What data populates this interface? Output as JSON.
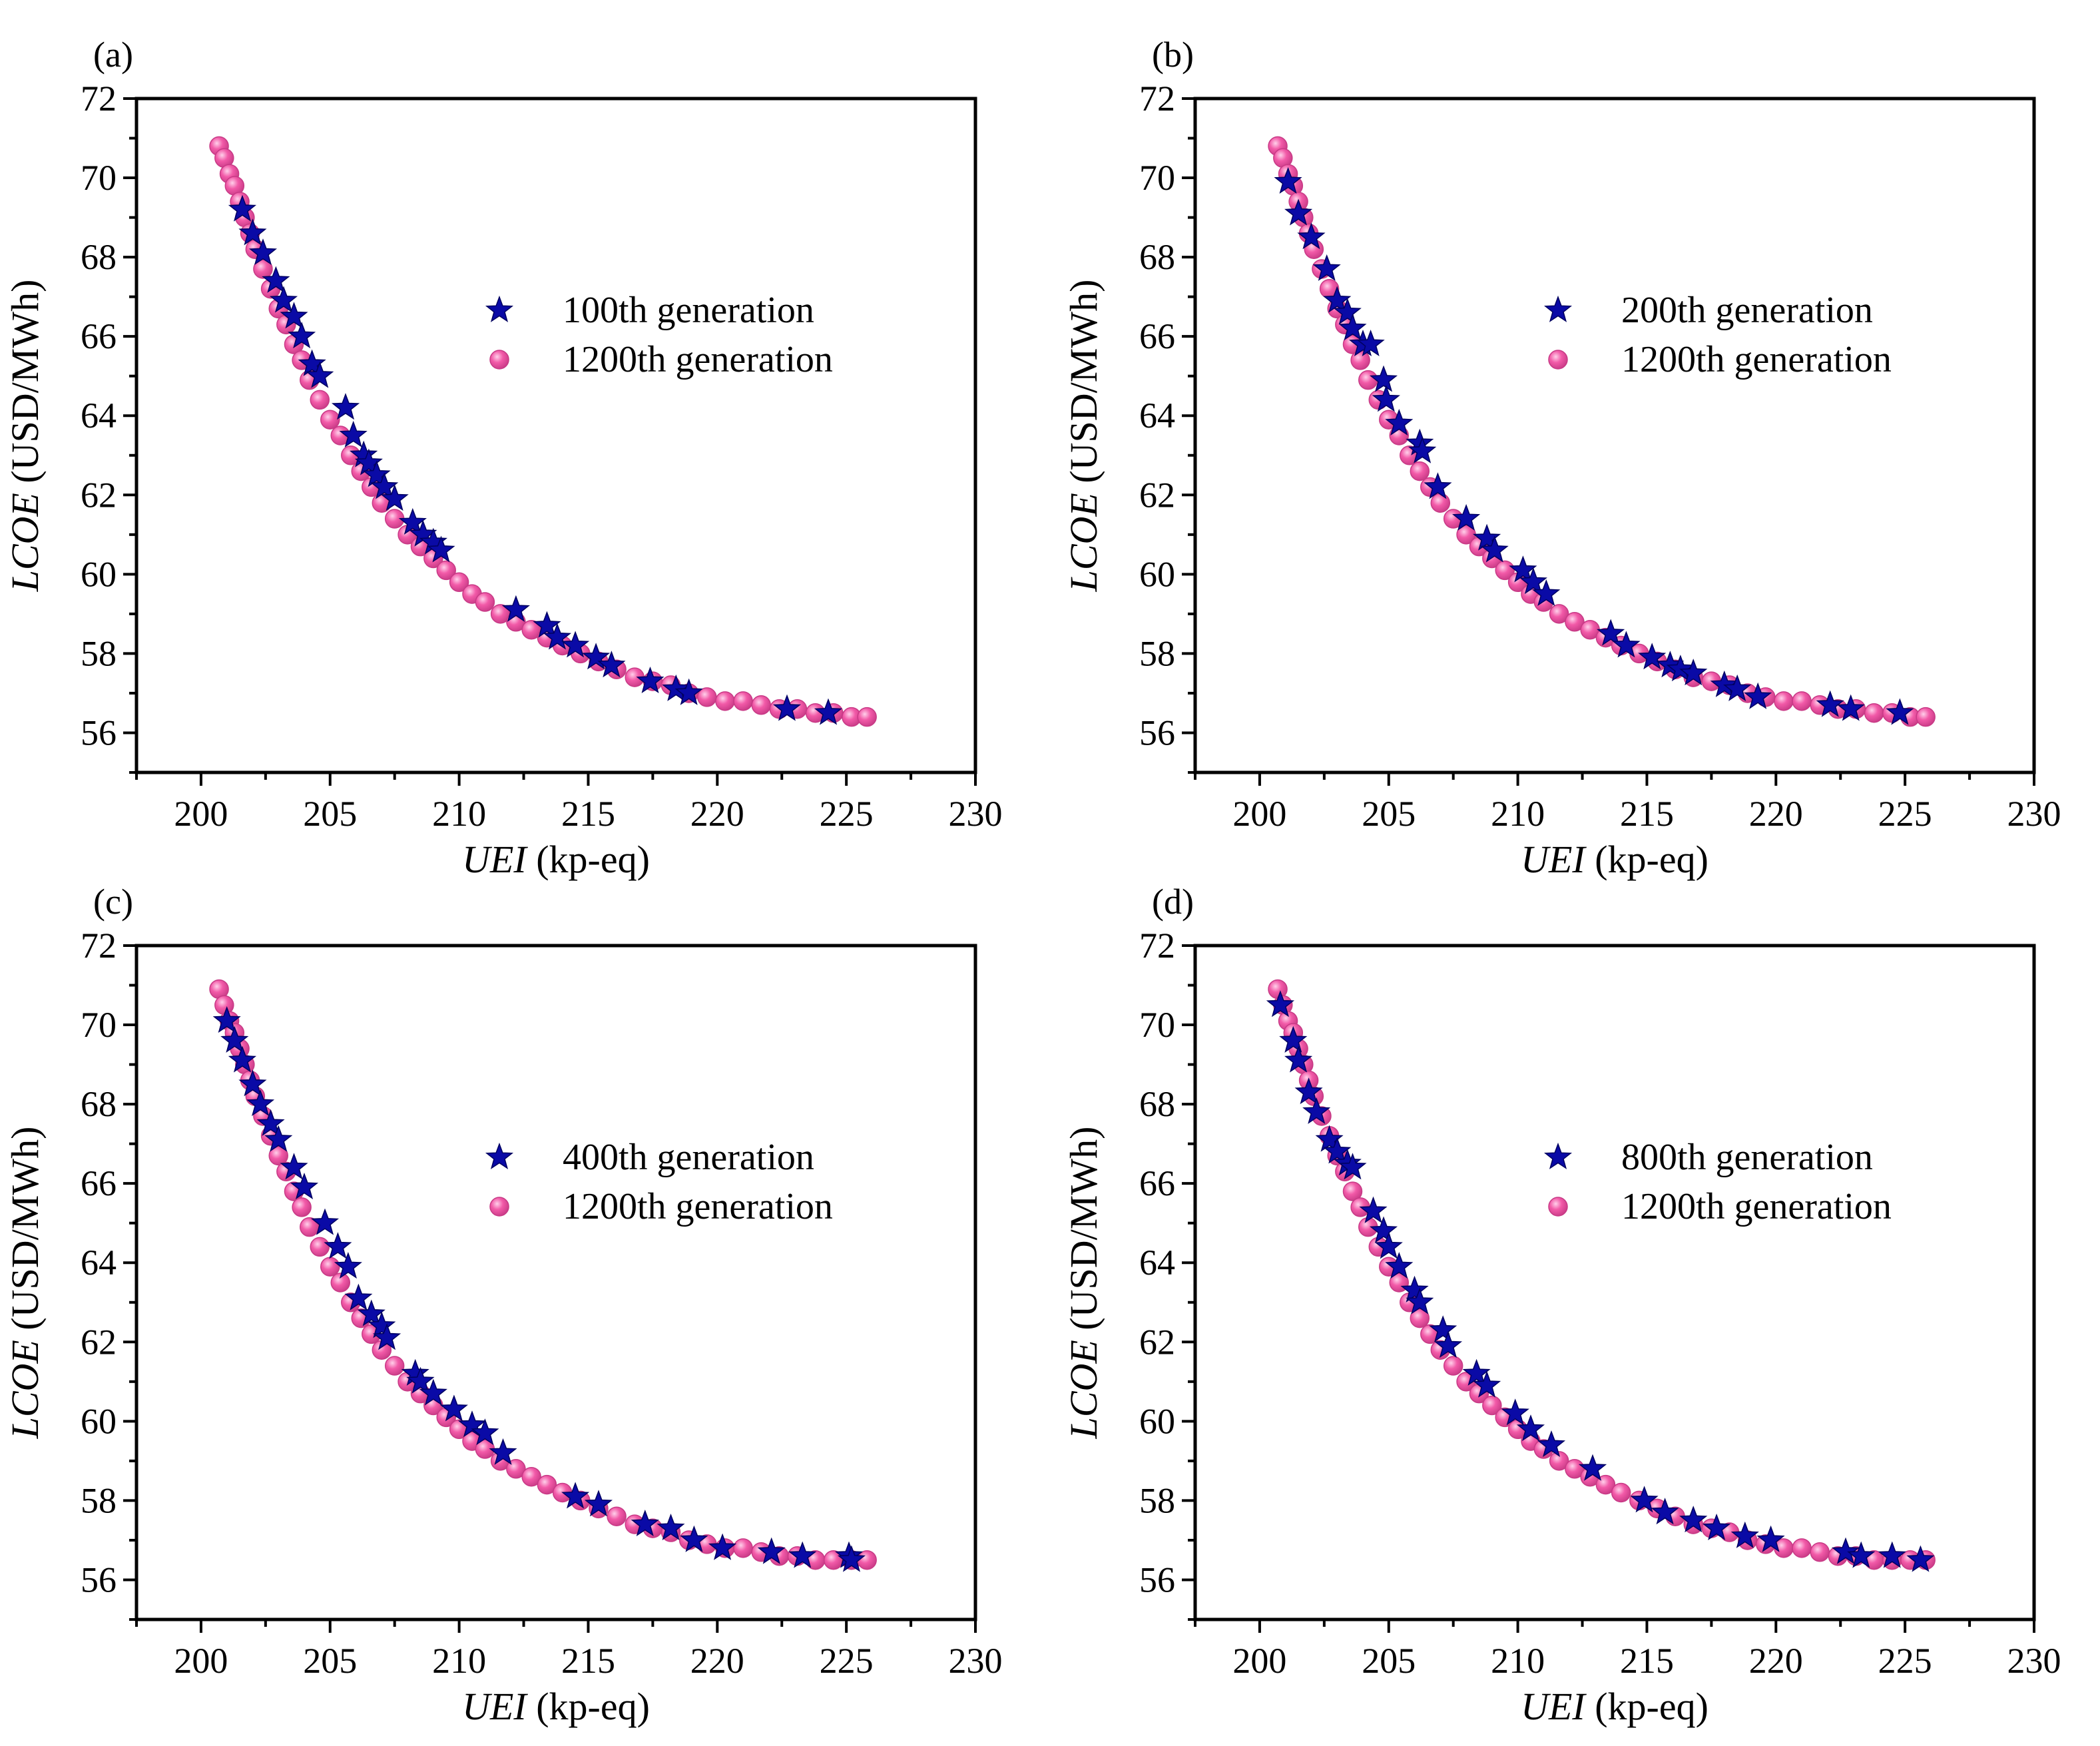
{
  "colors": {
    "star": "#0a0aa6",
    "star_stroke": "#000060",
    "circle": "#f25aa8",
    "circle_stroke": "#c83a86",
    "circle_highlight": "#ffd0ea"
  },
  "chart_data": [
    {
      "type": "scatter",
      "panel_label": "(a)",
      "xlabel_italic": "UEI",
      "xlabel_unit": " (kp-eq)",
      "ylabel_italic": "LCOE",
      "ylabel_unit": " (USD/MWh)",
      "xlim": [
        197.5,
        230
      ],
      "ylim": [
        55,
        72
      ],
      "xticks": [
        "200",
        "205",
        "210",
        "215",
        "220",
        "225",
        "230"
      ],
      "yticks": [
        "56",
        "58",
        "60",
        "62",
        "64",
        "66",
        "68",
        "70",
        "72"
      ],
      "series": [
        {
          "name": "100th generation",
          "marker": "star",
          "x": [
            201.6,
            202.0,
            202.4,
            202.9,
            203.2,
            203.6,
            203.9,
            204.3,
            204.6,
            205.6,
            205.9,
            206.3,
            206.5,
            206.8,
            207.1,
            207.5,
            208.2,
            208.6,
            209.0,
            209.3,
            212.2,
            213.4,
            213.8,
            214.5,
            215.3,
            215.9,
            217.4,
            218.4,
            218.9,
            222.7,
            224.3
          ],
          "y": [
            69.2,
            68.6,
            68.1,
            67.4,
            66.9,
            66.5,
            66.0,
            65.3,
            65.0,
            64.2,
            63.5,
            63.0,
            62.8,
            62.5,
            62.2,
            61.9,
            61.3,
            61.0,
            60.8,
            60.6,
            59.1,
            58.7,
            58.4,
            58.2,
            57.9,
            57.7,
            57.3,
            57.1,
            57.0,
            56.6,
            56.5
          ]
        },
        {
          "name": "1200th generation",
          "marker": "circle",
          "x": [
            200.7,
            200.9,
            201.1,
            201.3,
            201.5,
            201.7,
            201.9,
            202.1,
            202.4,
            202.7,
            203.0,
            203.3,
            203.6,
            203.9,
            204.2,
            204.6,
            205.0,
            205.4,
            205.8,
            206.2,
            206.6,
            207.0,
            207.5,
            208.0,
            208.5,
            209.0,
            209.5,
            210.0,
            210.5,
            211.0,
            211.6,
            212.2,
            212.8,
            213.4,
            214.0,
            214.7,
            215.4,
            216.1,
            216.8,
            217.5,
            218.2,
            218.9,
            219.6,
            220.3,
            221.0,
            221.7,
            222.4,
            223.1,
            223.8,
            224.5,
            225.2,
            225.8
          ],
          "y": [
            70.8,
            70.5,
            70.1,
            69.8,
            69.4,
            69.0,
            68.6,
            68.2,
            67.7,
            67.2,
            66.7,
            66.3,
            65.8,
            65.4,
            64.9,
            64.4,
            63.9,
            63.5,
            63.0,
            62.6,
            62.2,
            61.8,
            61.4,
            61.0,
            60.7,
            60.4,
            60.1,
            59.8,
            59.5,
            59.3,
            59.0,
            58.8,
            58.6,
            58.4,
            58.2,
            58.0,
            57.8,
            57.6,
            57.4,
            57.3,
            57.2,
            57.0,
            56.9,
            56.8,
            56.8,
            56.7,
            56.6,
            56.6,
            56.5,
            56.5,
            56.4,
            56.4
          ]
        }
      ]
    },
    {
      "type": "scatter",
      "panel_label": "(b)",
      "xlabel_italic": "UEI",
      "xlabel_unit": " (kp-eq)",
      "ylabel_italic": "LCOE",
      "ylabel_unit": " (USD/MWh)",
      "xlim": [
        197.5,
        230
      ],
      "ylim": [
        55,
        72
      ],
      "xticks": [
        "200",
        "205",
        "210",
        "215",
        "220",
        "225",
        "230"
      ],
      "yticks": [
        "56",
        "58",
        "60",
        "62",
        "64",
        "66",
        "68",
        "70",
        "72"
      ],
      "series": [
        {
          "name": "200th generation",
          "marker": "star",
          "x": [
            201.1,
            201.5,
            202.0,
            202.6,
            203.0,
            203.4,
            203.6,
            204.0,
            204.3,
            204.8,
            204.9,
            205.4,
            206.2,
            206.3,
            206.9,
            208.0,
            208.8,
            209.1,
            210.2,
            210.6,
            211.1,
            213.6,
            214.2,
            215.2,
            215.9,
            216.3,
            216.8,
            218.0,
            218.5,
            219.3,
            222.1,
            222.9,
            224.8
          ],
          "y": [
            69.9,
            69.1,
            68.5,
            67.7,
            66.9,
            66.6,
            66.2,
            65.8,
            65.8,
            64.9,
            64.4,
            63.8,
            63.3,
            63.1,
            62.2,
            61.4,
            60.9,
            60.6,
            60.1,
            59.8,
            59.5,
            58.5,
            58.2,
            57.9,
            57.7,
            57.6,
            57.5,
            57.2,
            57.1,
            56.9,
            56.7,
            56.6,
            56.5
          ]
        },
        {
          "name": "1200th generation",
          "marker": "circle",
          "x": [
            200.7,
            200.9,
            201.1,
            201.3,
            201.5,
            201.7,
            201.9,
            202.1,
            202.4,
            202.7,
            203.0,
            203.3,
            203.6,
            203.9,
            204.2,
            204.6,
            205.0,
            205.4,
            205.8,
            206.2,
            206.6,
            207.0,
            207.5,
            208.0,
            208.5,
            209.0,
            209.5,
            210.0,
            210.5,
            211.0,
            211.6,
            212.2,
            212.8,
            213.4,
            214.0,
            214.7,
            215.4,
            216.1,
            216.8,
            217.5,
            218.2,
            218.9,
            219.6,
            220.3,
            221.0,
            221.7,
            222.4,
            223.1,
            223.8,
            224.5,
            225.2,
            225.8
          ],
          "y": [
            70.8,
            70.5,
            70.1,
            69.8,
            69.4,
            69.0,
            68.6,
            68.2,
            67.7,
            67.2,
            66.7,
            66.3,
            65.8,
            65.4,
            64.9,
            64.4,
            63.9,
            63.5,
            63.0,
            62.6,
            62.2,
            61.8,
            61.4,
            61.0,
            60.7,
            60.4,
            60.1,
            59.8,
            59.5,
            59.3,
            59.0,
            58.8,
            58.6,
            58.4,
            58.2,
            58.0,
            57.8,
            57.6,
            57.4,
            57.3,
            57.2,
            57.0,
            56.9,
            56.8,
            56.8,
            56.7,
            56.6,
            56.6,
            56.5,
            56.5,
            56.4,
            56.4
          ]
        }
      ]
    },
    {
      "type": "scatter",
      "panel_label": "(c)",
      "xlabel_italic": "UEI",
      "xlabel_unit": " (kp-eq)",
      "ylabel_italic": "LCOE",
      "ylabel_unit": " (USD/MWh)",
      "xlim": [
        197.5,
        230
      ],
      "ylim": [
        55,
        72
      ],
      "xticks": [
        "200",
        "205",
        "210",
        "215",
        "220",
        "225",
        "230"
      ],
      "yticks": [
        "56",
        "58",
        "60",
        "62",
        "64",
        "66",
        "68",
        "70",
        "72"
      ],
      "series": [
        {
          "name": "400th generation",
          "marker": "star",
          "x": [
            201.0,
            201.3,
            201.6,
            202.0,
            202.3,
            202.7,
            203.0,
            203.6,
            204.0,
            204.8,
            205.3,
            205.7,
            206.1,
            206.6,
            207.0,
            207.2,
            208.3,
            208.5,
            209.0,
            209.8,
            210.5,
            211.0,
            211.7,
            214.5,
            215.4,
            217.2,
            218.2,
            219.1,
            220.2,
            222.1,
            223.3,
            225.1,
            225.2
          ],
          "y": [
            70.1,
            69.6,
            69.1,
            68.5,
            68.0,
            67.5,
            67.1,
            66.4,
            65.9,
            65.0,
            64.4,
            63.9,
            63.1,
            62.7,
            62.4,
            62.1,
            61.2,
            61.0,
            60.7,
            60.3,
            59.9,
            59.7,
            59.2,
            58.1,
            57.9,
            57.4,
            57.3,
            57.0,
            56.8,
            56.7,
            56.6,
            56.6,
            56.5
          ]
        },
        {
          "name": "1200th generation",
          "marker": "circle",
          "x": [
            200.7,
            200.9,
            201.1,
            201.3,
            201.5,
            201.7,
            201.9,
            202.1,
            202.4,
            202.7,
            203.0,
            203.3,
            203.6,
            203.9,
            204.2,
            204.6,
            205.0,
            205.4,
            205.8,
            206.2,
            206.6,
            207.0,
            207.5,
            208.0,
            208.5,
            209.0,
            209.5,
            210.0,
            210.5,
            211.0,
            211.6,
            212.2,
            212.8,
            213.4,
            214.0,
            214.7,
            215.4,
            216.1,
            216.8,
            217.5,
            218.2,
            218.9,
            219.6,
            220.3,
            221.0,
            221.7,
            222.4,
            223.1,
            223.8,
            224.5,
            225.2,
            225.8
          ],
          "y": [
            70.9,
            70.5,
            70.1,
            69.8,
            69.4,
            69.0,
            68.6,
            68.2,
            67.7,
            67.2,
            66.7,
            66.3,
            65.8,
            65.4,
            64.9,
            64.4,
            63.9,
            63.5,
            63.0,
            62.6,
            62.2,
            61.8,
            61.4,
            61.0,
            60.7,
            60.4,
            60.1,
            59.8,
            59.5,
            59.3,
            59.0,
            58.8,
            58.6,
            58.4,
            58.2,
            58.0,
            57.8,
            57.6,
            57.4,
            57.3,
            57.2,
            57.0,
            56.9,
            56.8,
            56.8,
            56.7,
            56.6,
            56.6,
            56.5,
            56.5,
            56.5,
            56.5
          ]
        }
      ]
    },
    {
      "type": "scatter",
      "panel_label": "(d)",
      "xlabel_italic": "UEI",
      "xlabel_unit": " (kp-eq)",
      "ylabel_italic": "LCOE",
      "ylabel_unit": " (USD/MWh)",
      "xlim": [
        197.5,
        230
      ],
      "ylim": [
        55,
        72
      ],
      "xticks": [
        "200",
        "205",
        "210",
        "215",
        "220",
        "225",
        "230"
      ],
      "yticks": [
        "56",
        "58",
        "60",
        "62",
        "64",
        "66",
        "68",
        "70",
        "72"
      ],
      "series": [
        {
          "name": "800th generation",
          "marker": "star",
          "x": [
            200.8,
            201.3,
            201.5,
            201.9,
            202.2,
            202.7,
            203.0,
            203.4,
            203.6,
            204.4,
            204.8,
            205.0,
            205.4,
            206.0,
            206.2,
            207.1,
            207.3,
            208.4,
            208.8,
            209.9,
            210.5,
            211.3,
            212.9,
            214.9,
            215.7,
            216.8,
            217.7,
            218.8,
            219.8,
            222.7,
            223.3,
            224.5,
            225.6
          ],
          "y": [
            70.5,
            69.6,
            69.1,
            68.3,
            67.8,
            67.1,
            66.8,
            66.5,
            66.4,
            65.3,
            64.8,
            64.4,
            63.9,
            63.3,
            63.0,
            62.3,
            61.9,
            61.2,
            60.9,
            60.2,
            59.8,
            59.4,
            58.8,
            58.0,
            57.7,
            57.5,
            57.3,
            57.1,
            57.0,
            56.7,
            56.6,
            56.6,
            56.5
          ]
        },
        {
          "name": "1200th generation",
          "marker": "circle",
          "x": [
            200.7,
            200.9,
            201.1,
            201.3,
            201.5,
            201.7,
            201.9,
            202.1,
            202.4,
            202.7,
            203.0,
            203.3,
            203.6,
            203.9,
            204.2,
            204.6,
            205.0,
            205.4,
            205.8,
            206.2,
            206.6,
            207.0,
            207.5,
            208.0,
            208.5,
            209.0,
            209.5,
            210.0,
            210.5,
            211.0,
            211.6,
            212.2,
            212.8,
            213.4,
            214.0,
            214.7,
            215.4,
            216.1,
            216.8,
            217.5,
            218.2,
            218.9,
            219.6,
            220.3,
            221.0,
            221.7,
            222.4,
            223.1,
            223.8,
            224.5,
            225.2,
            225.8
          ],
          "y": [
            70.9,
            70.5,
            70.1,
            69.8,
            69.4,
            69.0,
            68.6,
            68.2,
            67.7,
            67.2,
            66.7,
            66.3,
            65.8,
            65.4,
            64.9,
            64.4,
            63.9,
            63.5,
            63.0,
            62.6,
            62.2,
            61.8,
            61.4,
            61.0,
            60.7,
            60.4,
            60.1,
            59.8,
            59.5,
            59.3,
            59.0,
            58.8,
            58.6,
            58.4,
            58.2,
            58.0,
            57.8,
            57.6,
            57.4,
            57.3,
            57.2,
            57.0,
            56.9,
            56.8,
            56.8,
            56.7,
            56.6,
            56.6,
            56.5,
            56.5,
            56.5,
            56.5
          ]
        }
      ]
    }
  ]
}
